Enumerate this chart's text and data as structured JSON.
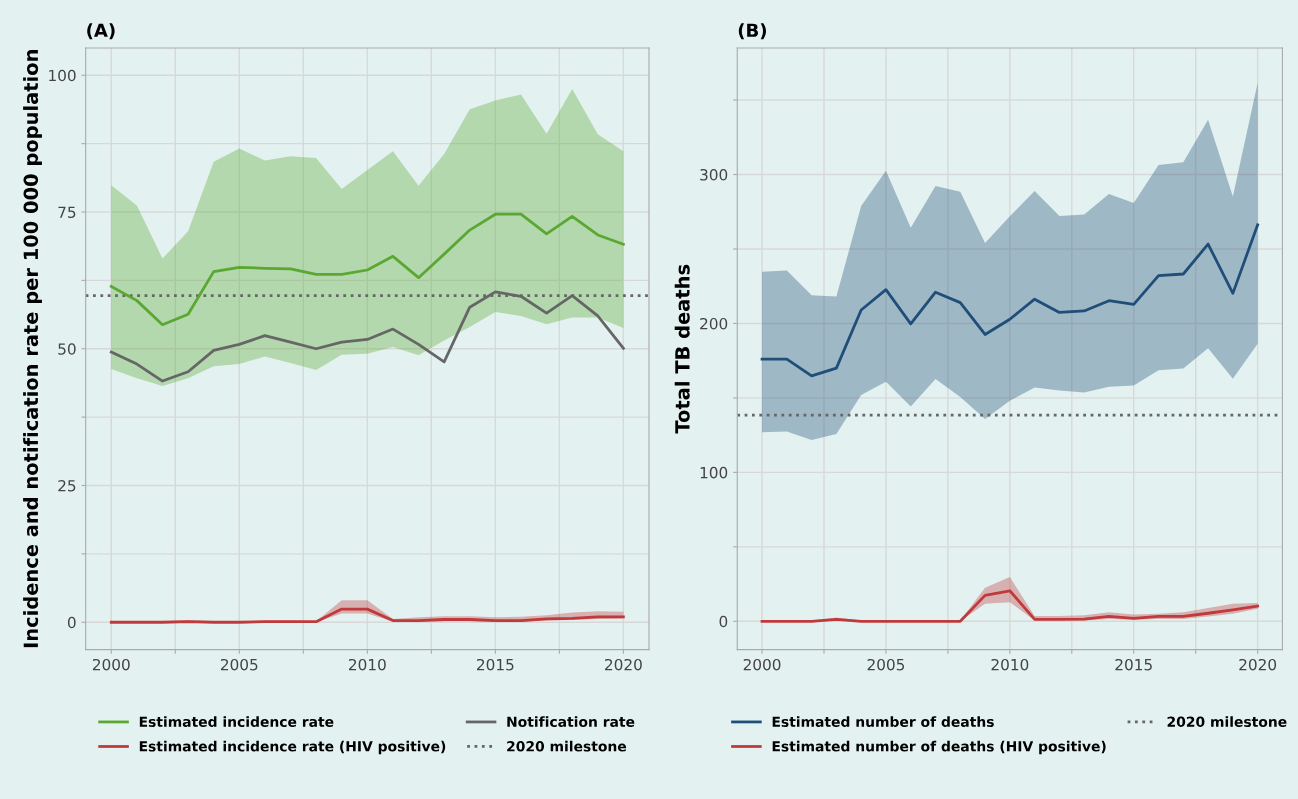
{
  "chart_data": [
    {
      "type": "line",
      "title": "(A)",
      "ylabel": "Incidence and notification rate per 100 000 population",
      "x": [
        2000,
        2001,
        2002,
        2003,
        2004,
        2005,
        2006,
        2007,
        2008,
        2009,
        2010,
        2011,
        2012,
        2013,
        2014,
        2015,
        2016,
        2017,
        2018,
        2019,
        2020
      ],
      "series": [
        {
          "name": "Estimated incidence rate",
          "color": "#5aa832",
          "values": [
            61.4,
            58.8,
            54.4,
            56.3,
            64.1,
            64.9,
            64.7,
            64.6,
            63.6,
            63.6,
            64.4,
            66.9,
            63.0,
            67.3,
            71.7,
            74.6,
            74.6,
            71.0,
            74.2,
            70.8,
            69.1
          ],
          "lower": [
            46.3,
            44.6,
            43.2,
            44.6,
            46.8,
            47.2,
            48.6,
            47.4,
            46.1,
            48.9,
            49.1,
            50.3,
            48.8,
            51.5,
            54.0,
            56.7,
            56.0,
            54.5,
            55.7,
            55.7,
            53.8
          ],
          "upper": [
            79.9,
            76.2,
            66.5,
            71.5,
            84.2,
            86.6,
            84.4,
            85.2,
            84.9,
            79.2,
            82.7,
            86.1,
            79.8,
            85.6,
            93.8,
            95.4,
            96.5,
            89.3,
            97.5,
            89.2,
            86.1
          ]
        },
        {
          "name": "Estimated incidence rate (HIV positive)",
          "color": "#c0393b",
          "values": [
            0,
            0,
            0,
            0.1,
            0,
            0,
            0.1,
            0.1,
            0.1,
            2.4,
            2.4,
            0.3,
            0.3,
            0.5,
            0.5,
            0.3,
            0.3,
            0.6,
            0.7,
            1.0,
            1.0
          ],
          "lower": [
            0,
            0,
            0,
            0,
            0,
            0,
            0,
            0,
            0,
            1.6,
            1.6,
            0.1,
            0.1,
            0.2,
            0.2,
            0.1,
            0.1,
            0.3,
            0.4,
            0.6,
            0.7
          ],
          "upper": [
            0.1,
            0.1,
            0.2,
            0.4,
            0.2,
            0.2,
            0.3,
            0.3,
            0.2,
            4.0,
            4.0,
            0.6,
            0.9,
            1.1,
            1.1,
            0.9,
            1.0,
            1.3,
            1.8,
            2.0,
            1.9
          ]
        },
        {
          "name": "Notification rate",
          "color": "#666666",
          "values": [
            49.4,
            47.2,
            44.1,
            45.8,
            49.7,
            50.8,
            52.4,
            51.2,
            50.0,
            51.2,
            51.7,
            53.6,
            50.8,
            47.6,
            57.6,
            60.4,
            59.6,
            56.5,
            59.7,
            56.0,
            50.1
          ]
        }
      ],
      "ref_lines": [
        {
          "axis": "y",
          "value": 59.7,
          "label": "2020 milestone",
          "color": "#666666",
          "line_style": "dotted"
        }
      ],
      "xlim": [
        1999,
        2021
      ],
      "xticks": [
        2000,
        {
          "value": 2002.5,
          "label": null
        },
        2005,
        {
          "value": 2007.5,
          "label": null
        },
        2010,
        {
          "value": 2012.5,
          "label": null
        },
        2015,
        {
          "value": 2017.5,
          "label": null
        },
        2020
      ],
      "ylim": [
        -5,
        105
      ],
      "yticks": [
        0,
        {
          "value": 12.5,
          "label": null
        },
        25,
        {
          "value": 37.5,
          "label": null
        },
        50,
        {
          "value": 62.5,
          "label": null
        },
        75,
        {
          "value": 87.5,
          "label": null
        },
        100
      ],
      "grid": true,
      "legend": "bottom",
      "line_style": "solid"
    },
    {
      "type": "line",
      "title": "(B)",
      "ylabel": "Total TB deaths",
      "x": [
        2000,
        2001,
        2002,
        2003,
        2004,
        2005,
        2006,
        2007,
        2008,
        2009,
        2010,
        2011,
        2012,
        2013,
        2014,
        2015,
        2016,
        2017,
        2018,
        2019,
        2020
      ],
      "series": [
        {
          "name": "Estimated number of deaths",
          "color": "#1f4e79",
          "values": [
            176,
            176,
            164.8,
            170,
            209,
            222.7,
            199.7,
            221,
            214,
            192.6,
            202.8,
            216.3,
            207.4,
            208.4,
            215.3,
            212.8,
            232.1,
            233.2,
            253.3,
            220.2,
            266.3
          ],
          "lower": [
            126.9,
            127.4,
            121.7,
            125.8,
            151.9,
            160.9,
            144.2,
            162.7,
            150.6,
            135.8,
            148.1,
            157,
            155,
            153.7,
            157.5,
            158.3,
            168.5,
            169.8,
            183.4,
            162.9,
            186.4
          ],
          "upper": [
            234.7,
            235.5,
            218.9,
            218.1,
            278.8,
            302.6,
            264.3,
            292.3,
            288.5,
            254.1,
            272,
            289,
            272.2,
            273.2,
            287,
            280.9,
            306.4,
            308.2,
            336.7,
            285.2,
            361.7
          ]
        },
        {
          "name": "Estimated number of deaths (HIV positive)",
          "color": "#c0393b",
          "values": [
            0,
            0,
            0,
            1.3,
            0,
            0,
            0,
            0,
            0,
            17.4,
            20.5,
            1.3,
            1.3,
            1.5,
            3.3,
            2.0,
            3.3,
            3.3,
            5.4,
            7.7,
            10.2
          ],
          "lower": [
            0,
            0,
            0,
            0.5,
            0,
            0,
            0,
            0,
            0,
            11.8,
            12.8,
            0.5,
            0.5,
            0.5,
            1.5,
            1.0,
            1.5,
            1.5,
            3.3,
            5.0,
            8.4
          ],
          "upper": [
            0.5,
            0.5,
            0.5,
            2.5,
            0.5,
            0.5,
            0.5,
            0.5,
            0.5,
            22.5,
            29.7,
            3.5,
            3.5,
            4.0,
            6.0,
            4.5,
            5.0,
            6.0,
            9.0,
            11.8,
            12.3
          ]
        }
      ],
      "ref_lines": [
        {
          "axis": "y",
          "value": 138.4,
          "label": "2020 milestone",
          "color": "#666666",
          "line_style": "dotted"
        }
      ],
      "xlim": [
        1999,
        2021
      ],
      "xticks": [
        2000,
        {
          "value": 2002.5,
          "label": null
        },
        2005,
        {
          "value": 2007.5,
          "label": null
        },
        2010,
        {
          "value": 2012.5,
          "label": null
        },
        2015,
        {
          "value": 2017.5,
          "label": null
        },
        2020
      ],
      "ylim": [
        -19,
        385
      ],
      "yticks": [
        0,
        {
          "value": 50,
          "label": null
        },
        100,
        {
          "value": 150,
          "label": null
        },
        200,
        {
          "value": 250,
          "label": null
        },
        300,
        {
          "value": 350,
          "label": null
        }
      ],
      "grid": true,
      "legend": "bottom",
      "line_style": "solid"
    }
  ]
}
